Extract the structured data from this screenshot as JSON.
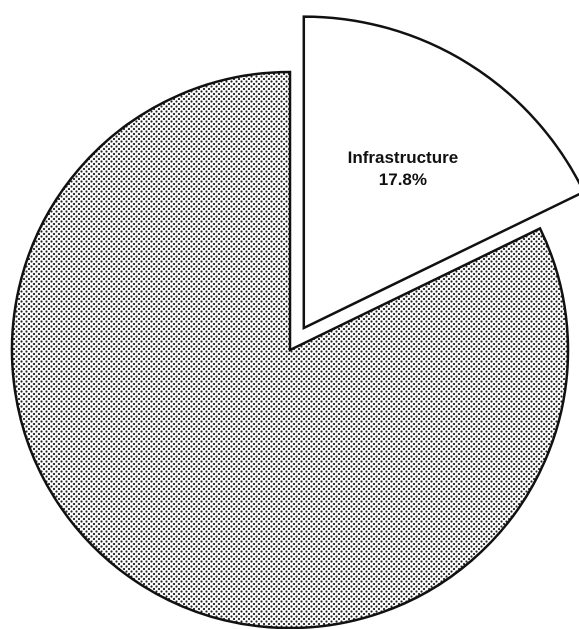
{
  "chart_data": {
    "type": "pie",
    "categories": [
      "Infrastructure",
      null
    ],
    "values": [
      17.8,
      82.2
    ],
    "value_labels": [
      "17.8%",
      null
    ],
    "colors": [
      "#ffffff",
      "dots"
    ],
    "explode": [
      true,
      false
    ]
  }
}
